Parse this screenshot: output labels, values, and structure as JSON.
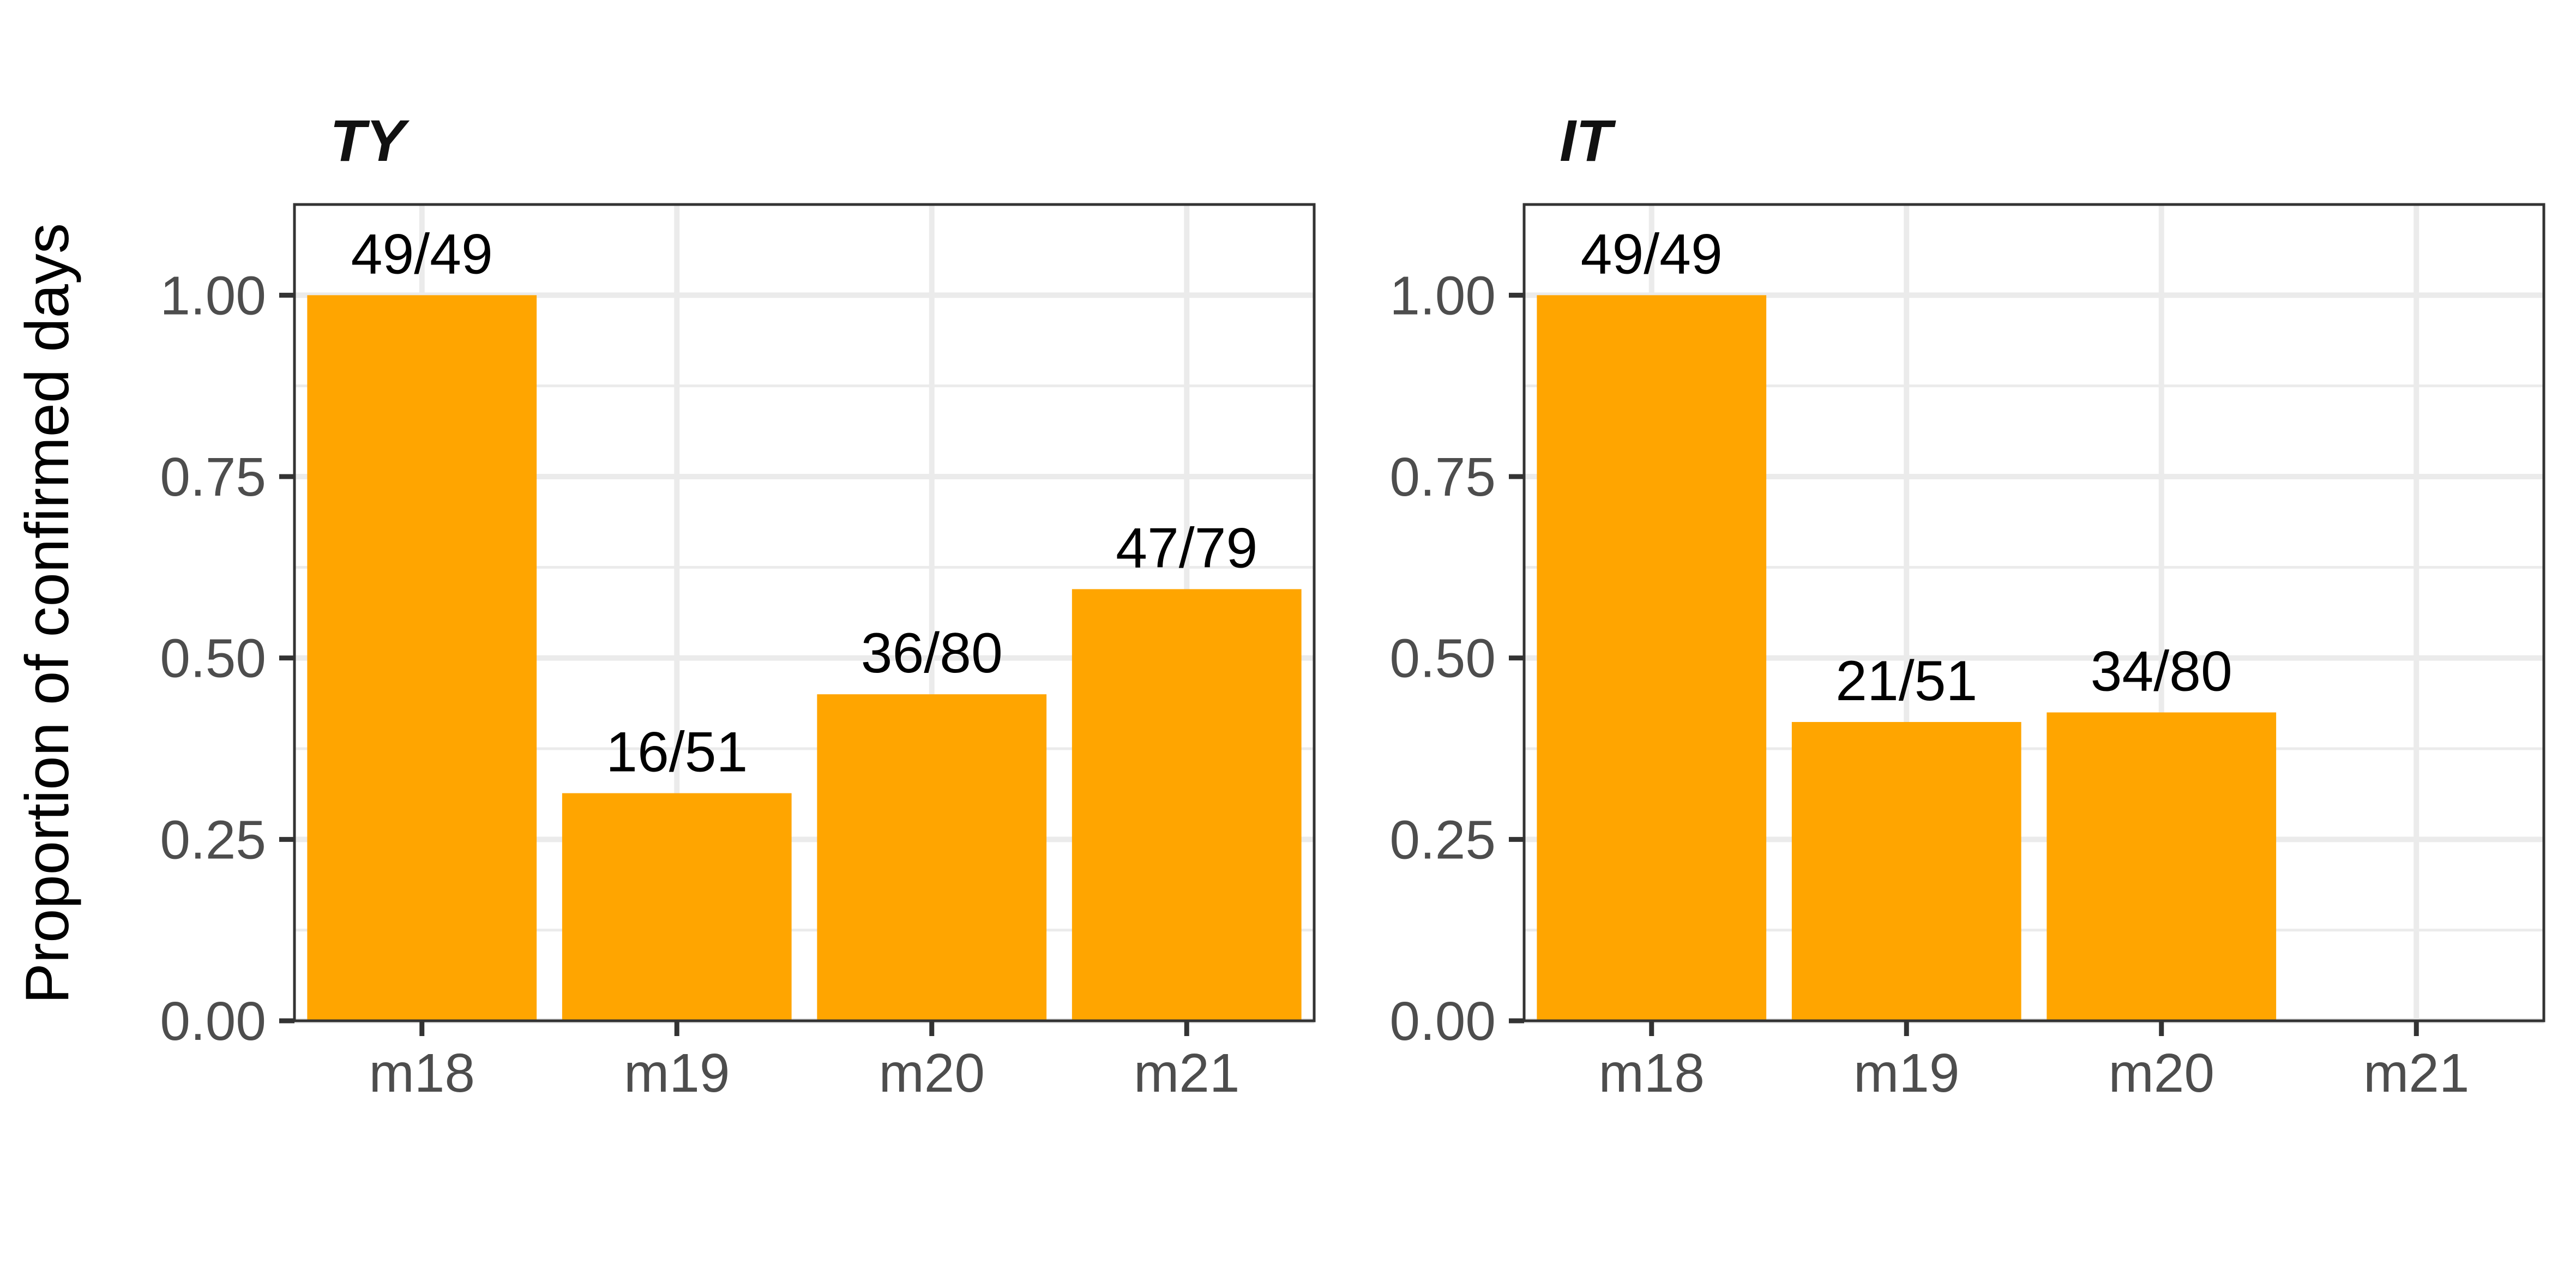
{
  "chart_data": {
    "type": "bar",
    "ylabel": "Proportion of confirmed days",
    "ylim": [
      0,
      1.125
    ],
    "yticks": [
      0,
      0.25,
      0.5,
      0.75,
      1.0
    ],
    "ytick_labels": [
      "0.00",
      "0.25",
      "0.50",
      "0.75",
      "1.00"
    ],
    "categories": [
      "m18",
      "m19",
      "m20",
      "m21"
    ],
    "bar_color": "#FFA500",
    "grid": true,
    "panels": [
      {
        "title": "TY",
        "values": [
          1.0,
          0.3137,
          0.45,
          0.5949
        ],
        "labels": [
          "49/49",
          "16/51",
          "36/80",
          "47/79"
        ]
      },
      {
        "title": "IT",
        "values": [
          1.0,
          0.4118,
          0.425,
          null
        ],
        "labels": [
          "49/49",
          "21/51",
          "34/80",
          ""
        ]
      }
    ]
  }
}
